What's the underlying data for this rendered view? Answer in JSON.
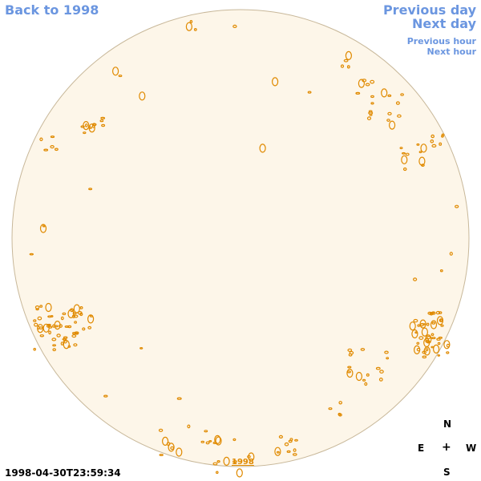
{
  "nav": {
    "back": "Back to 1998",
    "previous_day": "Previous day",
    "next_day": "Next day",
    "previous_hour": "Previous hour",
    "next_hour": "Next hour"
  },
  "timestamp": "1998-04-30T23:59:34",
  "year_label": "1998",
  "compass": {
    "n": "N",
    "e": "E",
    "center": "+",
    "w": "W",
    "s": "S"
  },
  "colors": {
    "disk_fill": "#fdf6e9",
    "disk_border": "#c8b89a",
    "contour": "#e08a00",
    "link": "#6b96e0"
  }
}
